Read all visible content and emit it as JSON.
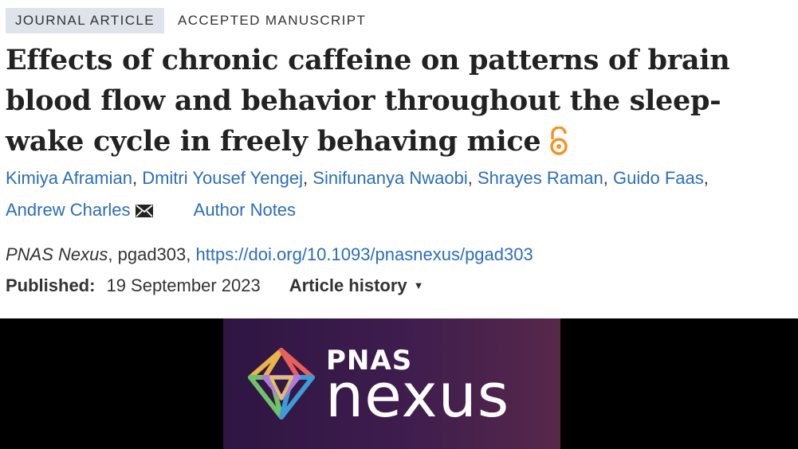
{
  "article": {
    "type_label": "JOURNAL ARTICLE",
    "status_label": "ACCEPTED MANUSCRIPT",
    "title": "Effects of chronic caffeine on patterns of brain blood flow and behavior throughout the sleep-wake cycle in freely behaving mice",
    "authors": [
      "Kimiya Aframian",
      "Dmitri Yousef Yengej",
      "Sinifunanya Nwaobi",
      "Shrayes Raman",
      "Guido Faas",
      "Andrew Charles"
    ],
    "separator": ",",
    "author_notes_label": "Author Notes",
    "journal": "PNAS Nexus",
    "article_id": ", pgad303, ",
    "doi": "https://doi.org/10.1093/pnasnexus/pgad303",
    "published_label": "Published:",
    "published_date": "19 September 2023",
    "history_label": "Article history"
  },
  "banner": {
    "logo_line1": "PNAS",
    "logo_line2": "nexus"
  },
  "colors": {
    "link": "#2a6ebb",
    "open_access": "#f7931e",
    "badge_bg": "#dfe3ec",
    "banner_bg": "#3f1d4e"
  },
  "icons": {
    "open_access": "open-access-lock-icon",
    "email": "envelope-icon",
    "history": "caret-down-icon",
    "logo": "pnas-nexus-logo-mark"
  }
}
